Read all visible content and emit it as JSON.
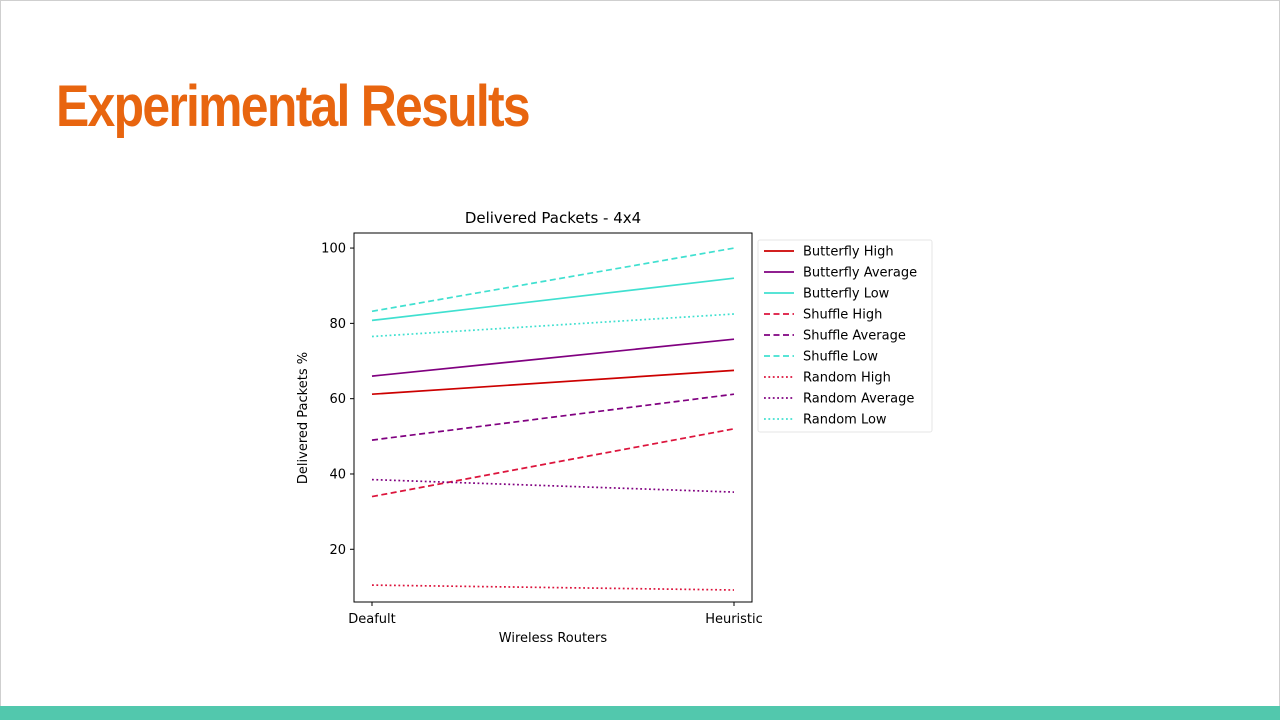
{
  "slide": {
    "title": "Experimental Results",
    "colors": {
      "title": "#e8650f",
      "bottom_bar": "#52c8ad"
    }
  },
  "chart_data": {
    "type": "line",
    "title": "Delivered Packets - 4x4",
    "xlabel": "Wireless Routers",
    "ylabel": "Delivered Packets %",
    "categories": [
      "Deafult",
      "Heuristic"
    ],
    "ylim": [
      6,
      104
    ],
    "yticks": [
      20,
      40,
      60,
      80,
      100
    ],
    "grid": false,
    "legend_position": "outside-right",
    "series": [
      {
        "name": "Butterfly High",
        "values": [
          61.2,
          67.5
        ],
        "color": "#cc0000",
        "dash": "solid"
      },
      {
        "name": "Butterfly Average",
        "values": [
          66.0,
          75.8
        ],
        "color": "#800080",
        "dash": "solid"
      },
      {
        "name": "Butterfly Low",
        "values": [
          80.8,
          92.0
        ],
        "color": "#40e0d0",
        "dash": "solid"
      },
      {
        "name": "Shuffle High",
        "values": [
          34.0,
          52.0
        ],
        "color": "#dc143c",
        "dash": "dashed"
      },
      {
        "name": "Shuffle Average",
        "values": [
          49.0,
          61.2
        ],
        "color": "#800080",
        "dash": "dashed"
      },
      {
        "name": "Shuffle Low",
        "values": [
          83.2,
          100.0
        ],
        "color": "#40e0d0",
        "dash": "dashed"
      },
      {
        "name": "Random High",
        "values": [
          10.5,
          9.2
        ],
        "color": "#dc143c",
        "dash": "dotted"
      },
      {
        "name": "Random Average",
        "values": [
          38.5,
          35.2
        ],
        "color": "#800080",
        "dash": "dotted"
      },
      {
        "name": "Random Low",
        "values": [
          76.5,
          82.5
        ],
        "color": "#40e0d0",
        "dash": "dotted"
      }
    ]
  }
}
